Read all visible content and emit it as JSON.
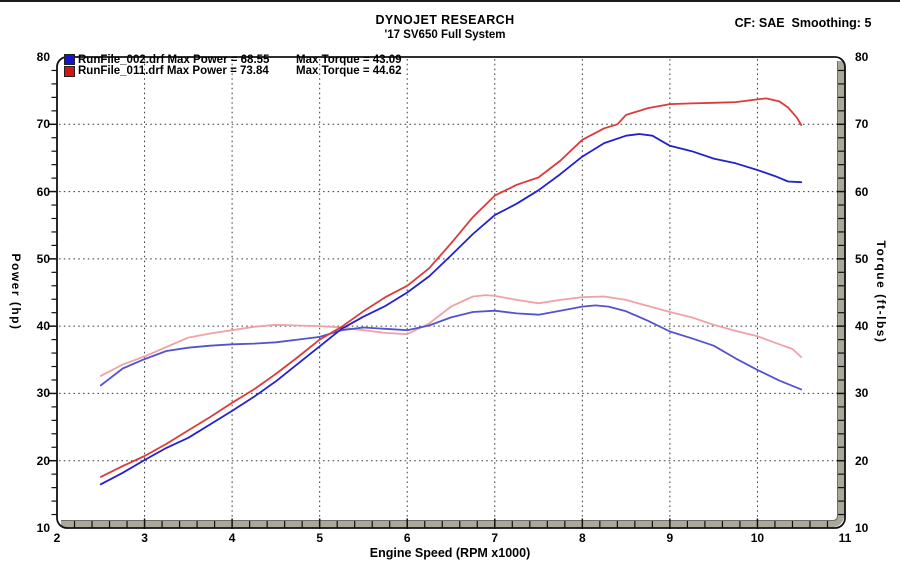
{
  "header": {
    "title": "DYNOJET RESEARCH",
    "subtitle": "'17 SV650 Full System",
    "correction_note": "CF: SAE  Smoothing: 5"
  },
  "legend": {
    "runs": [
      {
        "file_label": "RunFile_002.drf Max Power = 68.55",
        "torque_label": "Max Torque = 43.09",
        "color": "#1414cc"
      },
      {
        "file_label": "RunFile_011.drf Max Power = 73.84",
        "torque_label": "Max Torque = 44.62",
        "color": "#d51414"
      }
    ]
  },
  "chart_data": {
    "type": "line",
    "title": "DYNOJET RESEARCH",
    "subtitle": "'17 SV650 Full System",
    "xlabel": "Engine Speed (RPM x1000)",
    "ylabel_left": "Power (hp)",
    "ylabel_right": "Torque (ft-lbs)",
    "xlim": [
      2,
      11
    ],
    "ylim": [
      10,
      80
    ],
    "x_ticks": [
      2,
      3,
      4,
      5,
      6,
      7,
      8,
      9,
      10,
      11
    ],
    "y_ticks": [
      10,
      20,
      30,
      40,
      50,
      60,
      70,
      80
    ],
    "grid": "dotted",
    "legend_position": "top-left",
    "max_values": {
      "run_002": {
        "max_power": 68.55,
        "max_torque": 43.09
      },
      "run_011": {
        "max_power": 73.84,
        "max_torque": 44.62
      }
    },
    "series": [
      {
        "name": "RunFile_011.drf Torque",
        "axis": "right",
        "color": "#f0a2a6",
        "width": 1.8,
        "points": [
          [
            2.5,
            32.6
          ],
          [
            2.75,
            34.3
          ],
          [
            3,
            35.5
          ],
          [
            3.25,
            36.9
          ],
          [
            3.5,
            38.3
          ],
          [
            3.75,
            38.9
          ],
          [
            4,
            39.4
          ],
          [
            4.25,
            39.9
          ],
          [
            4.5,
            40.2
          ],
          [
            4.75,
            40.1
          ],
          [
            5,
            40.0
          ],
          [
            5.25,
            39.8
          ],
          [
            5.5,
            39.4
          ],
          [
            5.75,
            39.0
          ],
          [
            6,
            38.8
          ],
          [
            6.25,
            40.4
          ],
          [
            6.5,
            42.9
          ],
          [
            6.75,
            44.4
          ],
          [
            6.9,
            44.62
          ],
          [
            7,
            44.5
          ],
          [
            7.25,
            43.9
          ],
          [
            7.5,
            43.4
          ],
          [
            7.75,
            43.9
          ],
          [
            8,
            44.3
          ],
          [
            8.25,
            44.4
          ],
          [
            8.5,
            43.9
          ],
          [
            8.75,
            43.0
          ],
          [
            9,
            42.1
          ],
          [
            9.25,
            41.3
          ],
          [
            9.5,
            40.2
          ],
          [
            9.75,
            39.3
          ],
          [
            10,
            38.5
          ],
          [
            10.25,
            37.3
          ],
          [
            10.4,
            36.6
          ],
          [
            10.5,
            35.4
          ]
        ]
      },
      {
        "name": "RunFile_002.drf Torque",
        "axis": "right",
        "color": "#5353cf",
        "width": 1.8,
        "points": [
          [
            2.5,
            31.2
          ],
          [
            2.75,
            33.7
          ],
          [
            3,
            35.1
          ],
          [
            3.25,
            36.3
          ],
          [
            3.5,
            36.8
          ],
          [
            3.75,
            37.1
          ],
          [
            4,
            37.3
          ],
          [
            4.25,
            37.4
          ],
          [
            4.5,
            37.6
          ],
          [
            4.75,
            38.0
          ],
          [
            5,
            38.4
          ],
          [
            5.25,
            39.4
          ],
          [
            5.5,
            39.8
          ],
          [
            5.75,
            39.6
          ],
          [
            6,
            39.4
          ],
          [
            6.25,
            40.1
          ],
          [
            6.5,
            41.3
          ],
          [
            6.75,
            42.1
          ],
          [
            7,
            42.3
          ],
          [
            7.25,
            41.9
          ],
          [
            7.5,
            41.7
          ],
          [
            7.75,
            42.3
          ],
          [
            8,
            42.9
          ],
          [
            8.15,
            43.09
          ],
          [
            8.3,
            42.9
          ],
          [
            8.5,
            42.2
          ],
          [
            8.75,
            40.8
          ],
          [
            9,
            39.2
          ],
          [
            9.25,
            38.2
          ],
          [
            9.5,
            37.1
          ],
          [
            9.75,
            35.2
          ],
          [
            10,
            33.5
          ],
          [
            10.25,
            31.9
          ],
          [
            10.5,
            30.6
          ]
        ]
      },
      {
        "name": "RunFile_011.drf Power",
        "axis": "left",
        "color": "#db3b3b",
        "width": 1.8,
        "points": [
          [
            2.5,
            17.6
          ],
          [
            2.75,
            19.2
          ],
          [
            3,
            20.7
          ],
          [
            3.25,
            22.5
          ],
          [
            3.5,
            24.5
          ],
          [
            3.75,
            26.5
          ],
          [
            4,
            28.6
          ],
          [
            4.25,
            30.6
          ],
          [
            4.5,
            32.9
          ],
          [
            4.75,
            35.4
          ],
          [
            5,
            38.0
          ],
          [
            5.25,
            39.9
          ],
          [
            5.5,
            42.2
          ],
          [
            5.75,
            44.3
          ],
          [
            6,
            46.0
          ],
          [
            6.25,
            48.6
          ],
          [
            6.5,
            52.3
          ],
          [
            6.75,
            56.2
          ],
          [
            7,
            59.4
          ],
          [
            7.25,
            61.0
          ],
          [
            7.5,
            62.1
          ],
          [
            7.75,
            64.6
          ],
          [
            8,
            67.7
          ],
          [
            8.25,
            69.4
          ],
          [
            8.4,
            70.0
          ],
          [
            8.5,
            71.4
          ],
          [
            8.75,
            72.4
          ],
          [
            9,
            73.0
          ],
          [
            9.25,
            73.1
          ],
          [
            9.5,
            73.2
          ],
          [
            9.75,
            73.3
          ],
          [
            10,
            73.7
          ],
          [
            10.1,
            73.84
          ],
          [
            10.25,
            73.4
          ],
          [
            10.35,
            72.5
          ],
          [
            10.45,
            71.0
          ],
          [
            10.5,
            69.9
          ]
        ]
      },
      {
        "name": "RunFile_002.drf Power",
        "axis": "left",
        "color": "#2222cc",
        "width": 1.8,
        "points": [
          [
            2.5,
            16.5
          ],
          [
            2.75,
            18.2
          ],
          [
            3,
            20.1
          ],
          [
            3.25,
            21.9
          ],
          [
            3.5,
            23.4
          ],
          [
            3.75,
            25.4
          ],
          [
            4,
            27.4
          ],
          [
            4.25,
            29.5
          ],
          [
            4.5,
            31.8
          ],
          [
            4.75,
            34.4
          ],
          [
            5,
            37.0
          ],
          [
            5.25,
            39.6
          ],
          [
            5.5,
            41.4
          ],
          [
            5.75,
            43.0
          ],
          [
            6,
            45.0
          ],
          [
            6.25,
            47.4
          ],
          [
            6.5,
            50.5
          ],
          [
            6.75,
            53.7
          ],
          [
            7,
            56.5
          ],
          [
            7.25,
            58.2
          ],
          [
            7.5,
            60.2
          ],
          [
            7.75,
            62.6
          ],
          [
            8,
            65.2
          ],
          [
            8.25,
            67.2
          ],
          [
            8.5,
            68.3
          ],
          [
            8.65,
            68.55
          ],
          [
            8.8,
            68.3
          ],
          [
            9,
            66.8
          ],
          [
            9.25,
            66.0
          ],
          [
            9.5,
            64.9
          ],
          [
            9.75,
            64.2
          ],
          [
            10,
            63.2
          ],
          [
            10.2,
            62.3
          ],
          [
            10.35,
            61.5
          ],
          [
            10.5,
            61.4
          ]
        ]
      }
    ]
  }
}
